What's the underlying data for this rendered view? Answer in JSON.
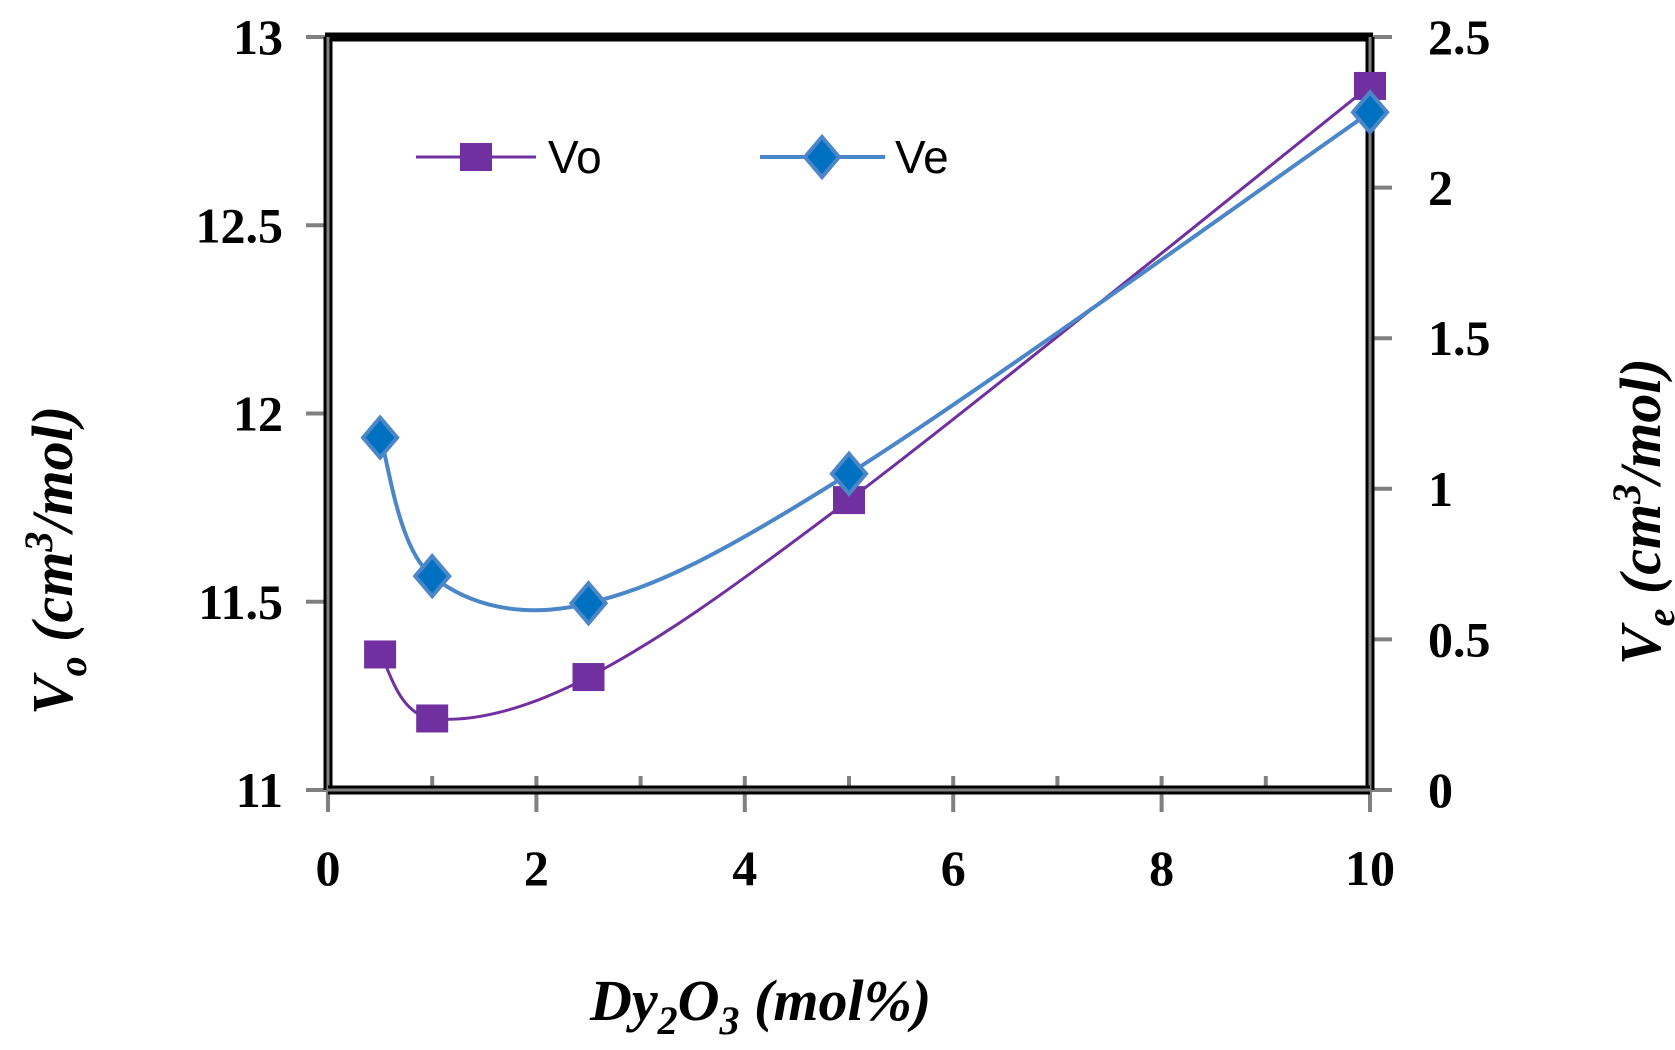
{
  "chart_data": {
    "type": "line",
    "title": "",
    "xlabel": "Dy2O3 (mol%)",
    "xlabel_parts": {
      "a": "Dy",
      "sub1": "2",
      "b": "O",
      "sub2": "3",
      "c": " (mol%)"
    },
    "ylabel_left": "Vo (cm3/mol)",
    "ylabel_left_parts": {
      "a": "V",
      "sub": "o",
      "b": " (cm",
      "sup": "3",
      "c": "/mol)"
    },
    "ylabel_right": "Ve (cm3/mol)",
    "ylabel_right_parts": {
      "a": "V",
      "sub": "e",
      "b": " (cm",
      "sup": "3",
      "c": "/mol)"
    },
    "xlim": [
      0,
      10
    ],
    "ylim_left": [
      11,
      13
    ],
    "ylim_right": [
      0,
      2.5
    ],
    "xticks": [
      "0",
      "2",
      "4",
      "6",
      "8",
      "10"
    ],
    "yticks_left": [
      "11",
      "11.5",
      "12",
      "12.5",
      "13"
    ],
    "yticks_right": [
      "0",
      "0.5",
      "1",
      "1.5",
      "2",
      "2.5"
    ],
    "legend_placement": "top-left",
    "x": [
      0.5,
      1,
      2.5,
      5,
      10
    ],
    "series": [
      {
        "name": "Vo",
        "axis": "left",
        "marker": "square",
        "color": "#7030a0",
        "values": [
          11.36,
          11.19,
          11.3,
          11.77,
          12.87
        ]
      },
      {
        "name": "Ve",
        "axis": "right",
        "marker": "diamond",
        "color": "#4a86c8",
        "fill": "#0070c0",
        "values": [
          1.17,
          0.71,
          0.62,
          1.05,
          2.25
        ]
      }
    ]
  }
}
